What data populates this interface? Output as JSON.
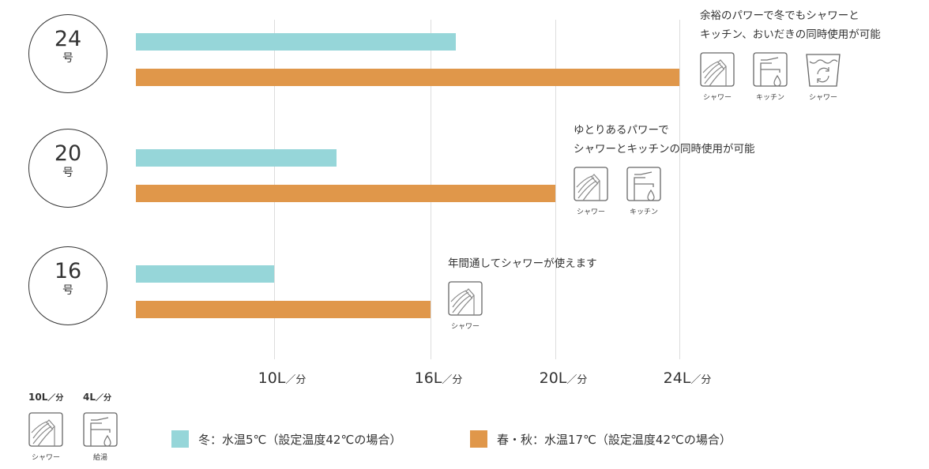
{
  "chart_data": {
    "type": "bar",
    "orientation": "horizontal",
    "categories": [
      "24号",
      "20号",
      "16号"
    ],
    "series": [
      {
        "name": "冬：水温5℃（設定温度42℃の場合）",
        "color": "#96d6d9",
        "values": [
          16.8,
          12.4,
          10
        ]
      },
      {
        "name": "春・秋：水温17℃（設定温度42℃の場合）",
        "color": "#e0974a",
        "values": [
          24,
          20,
          16
        ]
      }
    ],
    "xticks": [
      10,
      16,
      20,
      24
    ],
    "tick_unit": "L",
    "tick_suffix": "／分",
    "grid": true,
    "legend": "bottom"
  },
  "rows": [
    {
      "num": "24",
      "unit": "号",
      "desc": [
        "余裕のパワーで冬でもシャワーと",
        "キッチン、おいだきの同時使用が可能"
      ],
      "icons": [
        {
          "type": "shower",
          "label": "シャワー"
        },
        {
          "type": "kitchen",
          "label": "キッチン"
        },
        {
          "type": "bath",
          "label": "シャワー"
        }
      ]
    },
    {
      "num": "20",
      "unit": "号",
      "desc": [
        "ゆとりあるパワーで",
        "シャワーとキッチンの同時使用が可能"
      ],
      "icons": [
        {
          "type": "shower",
          "label": "シャワー"
        },
        {
          "type": "kitchen",
          "label": "キッチン"
        }
      ]
    },
    {
      "num": "16",
      "unit": "号",
      "desc": [
        "年間通してシャワーが使えます"
      ],
      "icons": [
        {
          "type": "shower",
          "label": "シャワー"
        }
      ]
    }
  ],
  "reference": [
    {
      "value": "10L",
      "suffix": "／分",
      "type": "shower",
      "label": "シャワー"
    },
    {
      "value": "4L",
      "suffix": "／分",
      "type": "kitchen",
      "label": "給湯"
    }
  ]
}
